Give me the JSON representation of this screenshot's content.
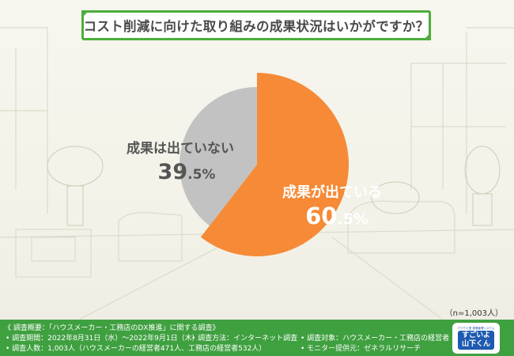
{
  "title": "コスト削減に向けた取り組みの成果状況はいかがですか？",
  "chart_data": {
    "type": "pie",
    "slices": [
      {
        "label": "成果が出ている",
        "value": 60.5,
        "value_text": "60",
        "decimal_text": ".5",
        "unit": "%",
        "color": "#f68a37"
      },
      {
        "label": "成果は出ていない",
        "value": 39.5,
        "value_text": "39",
        "decimal_text": ".5",
        "unit": "%",
        "color": "#c2c2c2"
      }
    ]
  },
  "sample_size": "（n=1,003人）",
  "footer": {
    "survey_title": "《 調査概要：「ハウスメーカー・工務店のDX推進」に関する調査》",
    "period": "• 調査期間：2022年8月31日（水）〜2022年9月1日（木）",
    "method": "• 調査方法：インターネット調査",
    "target": "• 調査対象：ハウスメーカー・工務店の経営者",
    "respondents": "• 調査人数：1,003人（ハウスメーカーの経営者471人、工務店の経営者532人）",
    "provider": "• モニター提供元：ゼネラルリサーチ",
    "logo_sub": "クラウド型 現場管理システム",
    "logo_line1": "すごいよ",
    "logo_line2": "山下くん"
  }
}
